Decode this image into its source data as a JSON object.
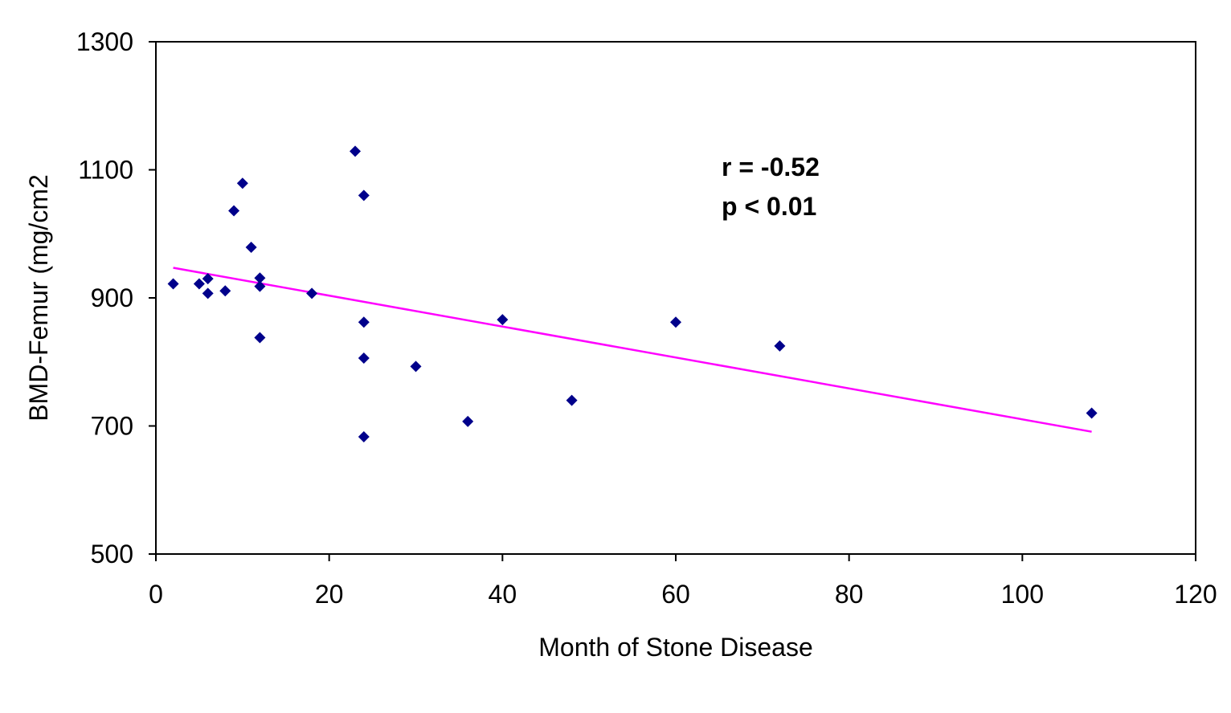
{
  "chart_data": {
    "type": "scatter",
    "title": "",
    "xlabel": "Month of Stone Disease",
    "ylabel": "BMD-Femur (mg/cm2",
    "xlim": [
      0,
      120
    ],
    "ylim": [
      500,
      1300
    ],
    "xticks": [
      0,
      20,
      40,
      60,
      80,
      100,
      120
    ],
    "yticks": [
      500,
      700,
      900,
      1100,
      1300
    ],
    "grid": false,
    "legend": "none",
    "colors": {
      "points": "#00008B",
      "trendline": "#FF00FF",
      "axes": "#000000"
    },
    "series": [
      {
        "marker": "diamond",
        "points": [
          {
            "x": 2,
            "y": 922
          },
          {
            "x": 5,
            "y": 922
          },
          {
            "x": 6,
            "y": 930
          },
          {
            "x": 6,
            "y": 907
          },
          {
            "x": 8,
            "y": 911
          },
          {
            "x": 9,
            "y": 1036
          },
          {
            "x": 10,
            "y": 1079
          },
          {
            "x": 11,
            "y": 979
          },
          {
            "x": 12,
            "y": 931
          },
          {
            "x": 12,
            "y": 918
          },
          {
            "x": 12,
            "y": 838
          },
          {
            "x": 18,
            "y": 907
          },
          {
            "x": 23,
            "y": 1129
          },
          {
            "x": 24,
            "y": 1060
          },
          {
            "x": 24,
            "y": 862
          },
          {
            "x": 24,
            "y": 806
          },
          {
            "x": 24,
            "y": 683
          },
          {
            "x": 30,
            "y": 793
          },
          {
            "x": 36,
            "y": 707
          },
          {
            "x": 40,
            "y": 866
          },
          {
            "x": 48,
            "y": 740
          },
          {
            "x": 60,
            "y": 862
          },
          {
            "x": 72,
            "y": 825
          },
          {
            "x": 108,
            "y": 720
          }
        ]
      }
    ],
    "trendline": {
      "x": [
        2,
        108
      ],
      "y": [
        947,
        691
      ]
    },
    "annotations": [
      "r = -0.52",
      "p < 0.01"
    ]
  }
}
